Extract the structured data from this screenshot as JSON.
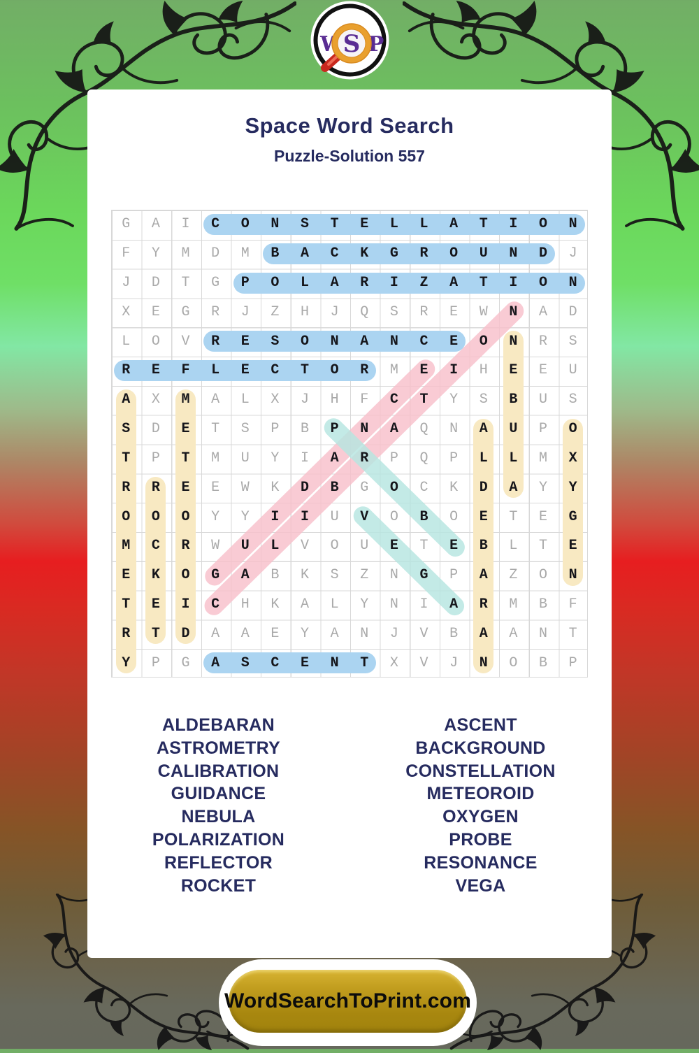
{
  "page": {
    "title": "Space Word Search",
    "subtitle": "Puzzle-Solution 557",
    "site_banner": "WordSearchToPrint.com"
  },
  "logo": {
    "letter_w": "W",
    "letter_s": "S",
    "letter_p": "P"
  },
  "colors": {
    "navy_text": "#262b5f",
    "logo_purple": "#5a2d93",
    "banner_gold": "#b3901a",
    "highlights": {
      "blue": "#abd4f1",
      "yellow": "#f8e9c2",
      "pink": "#f8bfca",
      "teal": "#b6e5e0"
    },
    "letter_gray": "#a9a9a9",
    "letter_solved": "#15151a"
  },
  "grid": {
    "rows": 16,
    "cols": 16,
    "letters": [
      "GAICONSTELLATION",
      "FYMDMBACKGROUNDJ",
      "JDTGPOLARIZATION",
      "XEGRJZHJQSREWNAD",
      "LOVRESONANCEONRS",
      "REFLECTORMEIHEEU",
      "AXMALXJHFCTYSBUS",
      "SDETSPBPNAQNAUPO",
      "TPTMUYIARPQPLLMX",
      "RREEWKDBGOCKDAYY",
      "OOOYYIIUVOBOETEG",
      "MCRWULVOUETEBLTE",
      "EKOGABKSZNGPAZON",
      "TEICHKALYNIARMBF",
      "RTDAAEYANJVBAANT",
      "YPGASCENTXVJNOBP"
    ],
    "placements": [
      {
        "word": "CONSTELLATION",
        "color": "blue",
        "start": [
          1,
          4
        ],
        "end": [
          1,
          16
        ]
      },
      {
        "word": "BACKGROUND",
        "color": "blue",
        "start": [
          2,
          6
        ],
        "end": [
          2,
          15
        ]
      },
      {
        "word": "POLARIZATION",
        "color": "blue",
        "start": [
          3,
          5
        ],
        "end": [
          3,
          16
        ]
      },
      {
        "word": "RESONANCE",
        "color": "blue",
        "start": [
          5,
          4
        ],
        "end": [
          5,
          12
        ]
      },
      {
        "word": "REFLECTOR",
        "color": "blue",
        "start": [
          6,
          1
        ],
        "end": [
          6,
          9
        ]
      },
      {
        "word": "ASCENT",
        "color": "blue",
        "start": [
          16,
          4
        ],
        "end": [
          16,
          9
        ]
      },
      {
        "word": "NEBULA",
        "color": "yellow",
        "start": [
          5,
          14
        ],
        "end": [
          10,
          14
        ]
      },
      {
        "word": "ASTROMETRY",
        "color": "yellow",
        "start": [
          7,
          1
        ],
        "end": [
          16,
          1
        ]
      },
      {
        "word": "METEOROID",
        "color": "yellow",
        "start": [
          7,
          3
        ],
        "end": [
          15,
          3
        ]
      },
      {
        "word": "ALDEBARAN",
        "color": "yellow",
        "start": [
          8,
          13
        ],
        "end": [
          16,
          13
        ]
      },
      {
        "word": "OXYGEN",
        "color": "yellow",
        "start": [
          8,
          16
        ],
        "end": [
          13,
          16
        ]
      },
      {
        "word": "ROCKET",
        "color": "yellow",
        "start": [
          10,
          2
        ],
        "end": [
          15,
          2
        ]
      },
      {
        "word": "CALIBRATION",
        "color": "pink",
        "start": [
          4,
          14
        ],
        "end": [
          14,
          4
        ]
      },
      {
        "word": "GUIDANCE",
        "color": "pink",
        "start": [
          6,
          11
        ],
        "end": [
          13,
          4
        ]
      },
      {
        "word": "PROBE",
        "color": "teal",
        "start": [
          8,
          8
        ],
        "end": [
          12,
          12
        ]
      },
      {
        "word": "VEGA",
        "color": "teal",
        "start": [
          11,
          9
        ],
        "end": [
          14,
          12
        ]
      }
    ]
  },
  "word_list": {
    "left": [
      "ALDEBARAN",
      "ASTROMETRY",
      "CALIBRATION",
      "GUIDANCE",
      "NEBULA",
      "POLARIZATION",
      "REFLECTOR",
      "ROCKET"
    ],
    "right": [
      "ASCENT",
      "BACKGROUND",
      "CONSTELLATION",
      "METEOROID",
      "OXYGEN",
      "PROBE",
      "RESONANCE",
      "VEGA"
    ]
  }
}
